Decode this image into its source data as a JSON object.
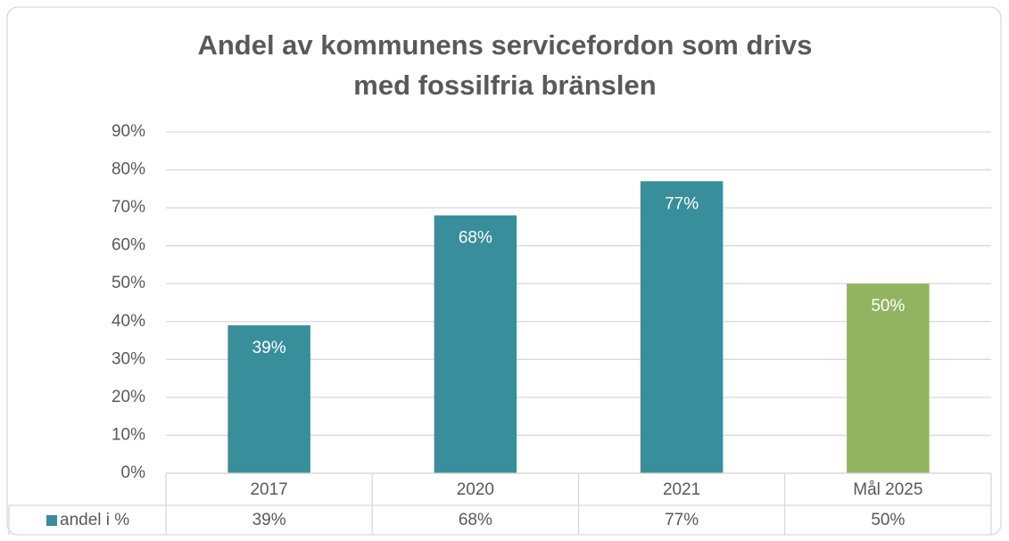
{
  "chart_data": {
    "type": "bar",
    "title": [
      "Andel av kommunens servicefordon som drivs",
      "med fossilfria bränslen"
    ],
    "categories": [
      "2017",
      "2020",
      "2021",
      "Mål 2025"
    ],
    "series": [
      {
        "name": "andel i %",
        "color": "#388e9b",
        "colors": [
          "#388e9b",
          "#388e9b",
          "#388e9b",
          "#92b460"
        ],
        "values": [
          39,
          68,
          77,
          50
        ],
        "value_labels": [
          "39%",
          "68%",
          "77%",
          "50%"
        ]
      }
    ],
    "ylim": [
      0,
      90
    ],
    "yticks": [
      {
        "value": 0,
        "label": "0%"
      },
      {
        "value": 10,
        "label": "10%"
      },
      {
        "value": 20,
        "label": "20%"
      },
      {
        "value": 30,
        "label": "30%"
      },
      {
        "value": 40,
        "label": "40%"
      },
      {
        "value": 50,
        "label": "50%"
      },
      {
        "value": 60,
        "label": "60%"
      },
      {
        "value": 70,
        "label": "70%"
      },
      {
        "value": 80,
        "label": "80%"
      },
      {
        "value": 90,
        "label": "90%"
      }
    ],
    "grid": true,
    "data_table": true
  }
}
